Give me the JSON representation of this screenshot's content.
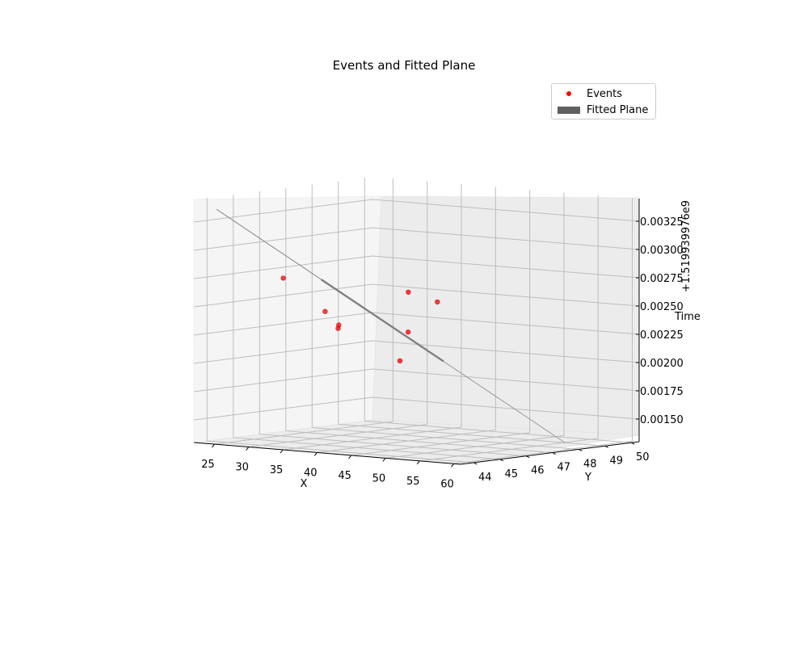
{
  "chart_data": {
    "type": "scatter",
    "title": "Events and Fitted Plane",
    "xlabel": "X",
    "ylabel": "Y",
    "zlabel": "Time",
    "z_offset_label": "+1.519939976e9",
    "xlim": [
      22,
      61
    ],
    "ylim": [
      43.5,
      50.3
    ],
    "zlim": [
      0.0013,
      0.00345
    ],
    "x_ticks": [
      "25",
      "30",
      "35",
      "40",
      "45",
      "50",
      "55",
      "60"
    ],
    "y_ticks": [
      "44",
      "45",
      "46",
      "47",
      "48",
      "49",
      "50"
    ],
    "z_ticks": [
      "0.00150",
      "0.00175",
      "0.00200",
      "0.00225",
      "0.00250",
      "0.00275",
      "0.00300",
      "0.00325"
    ],
    "legend": {
      "position": "upper-right",
      "entries": [
        {
          "label": "Events",
          "marker": "dot",
          "color": "#ff0000"
        },
        {
          "label": "Fitted Plane",
          "marker": "patch",
          "color": "#606060"
        }
      ]
    },
    "grid": true,
    "series": [
      {
        "name": "Events",
        "points": [
          {
            "x": 32.0,
            "y": 44.3,
            "z": 0.00278
          },
          {
            "x": 40.3,
            "y": 46.9,
            "z": 0.00262
          },
          {
            "x": 38.5,
            "y": 44.2,
            "z": 0.00252
          },
          {
            "x": 43.4,
            "y": 47.2,
            "z": 0.00254
          },
          {
            "x": 40.5,
            "y": 44.2,
            "z": 0.00241
          },
          {
            "x": 40.4,
            "y": 44.2,
            "z": 0.00238
          },
          {
            "x": 46.8,
            "y": 45.2,
            "z": 0.00235
          },
          {
            "x": 43.3,
            "y": 45.8,
            "z": 0.00206
          }
        ]
      }
    ],
    "fitted_plane": {
      "line_start": {
        "x": 23,
        "y": 44.1,
        "z": 0.00335
      },
      "line_end": {
        "x": 61,
        "y": 47.5,
        "z": 0.00137
      }
    }
  }
}
